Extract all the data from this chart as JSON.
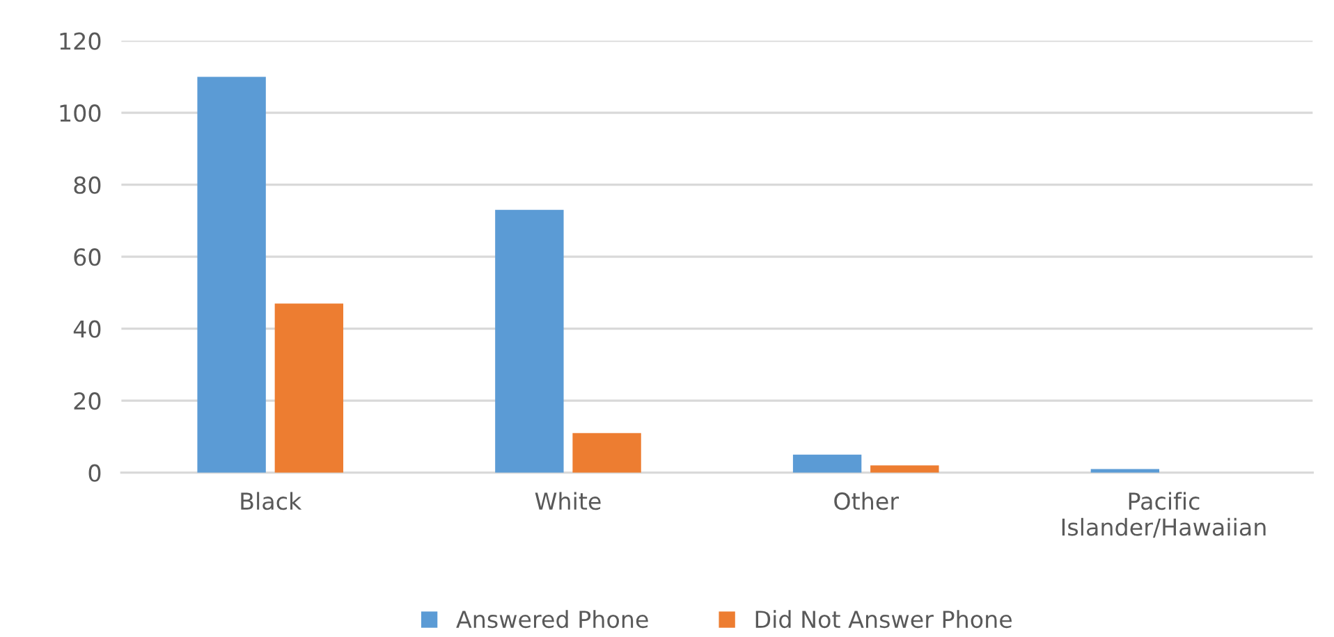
{
  "chart_data": {
    "type": "bar",
    "categories": [
      "Black",
      "White",
      "Other",
      "Pacific\nIslander/Hawaiian"
    ],
    "series": [
      {
        "name": "Answered Phone",
        "color": "#5b9bd5",
        "values": [
          110,
          73,
          5,
          1
        ]
      },
      {
        "name": "Did Not Answer Phone",
        "color": "#ed7d31",
        "values": [
          47,
          11,
          2,
          0
        ]
      }
    ],
    "ylim": [
      0,
      120
    ],
    "yticks": [
      0,
      20,
      40,
      60,
      80,
      100,
      120
    ],
    "grid": "y",
    "legend": "bottom"
  }
}
